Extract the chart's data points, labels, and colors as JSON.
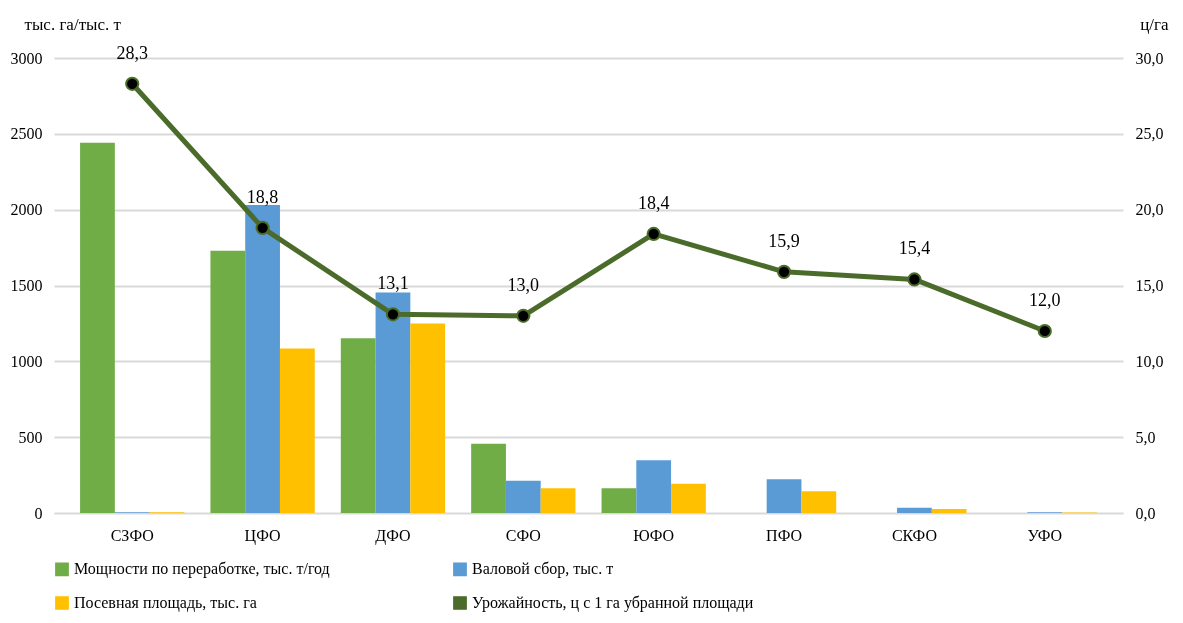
{
  "chart_data": {
    "type": "bar",
    "ylabel": "тыс. га/тыс. т",
    "y2label": "ц/га",
    "categories": [
      "СЗФО",
      "ЦФО",
      "ДФО",
      "СФО",
      "ЮФО",
      "ПФО",
      "СКФО",
      "УФО"
    ],
    "series": [
      {
        "name": "Мощности по переработке, тыс. т/год",
        "color": "#70ad47",
        "values": [
          2442,
          1729,
          1152,
          457,
          163,
          0,
          0,
          0
        ]
      },
      {
        "name": "Валовой сбор, тыс. т",
        "color": "#5b9bd5",
        "values": [
          5,
          2031,
          1454,
          212,
          348,
          223,
          35,
          5
        ]
      },
      {
        "name": "Посевная площадь, тыс. га",
        "color": "#ffc000",
        "values": [
          5,
          1084,
          1250,
          163,
          193,
          144,
          27,
          4
        ]
      },
      {
        "name": "Урожайность, ц с 1 га убранной площади",
        "type": "line",
        "axis": "y2",
        "color": "#4a6b2a",
        "marker": "circle",
        "values": [
          28.3,
          18.8,
          13.1,
          13.0,
          18.4,
          15.9,
          15.4,
          12.0
        ],
        "value_labels": [
          "28,3",
          "18,8",
          "13,1",
          "13,0",
          "18,4",
          "15,9",
          "15,4",
          "12,0"
        ]
      }
    ],
    "ylim": [
      0,
      3000
    ],
    "yticks": [
      0,
      500,
      1000,
      1500,
      2000,
      2500,
      3000
    ],
    "y2lim": [
      0,
      30
    ],
    "y2ticks": [
      {
        "value": 0,
        "label": "0,0"
      },
      {
        "value": 5,
        "label": "5,0"
      },
      {
        "value": 10,
        "label": "10,0"
      },
      {
        "value": 15,
        "label": "15,0"
      },
      {
        "value": 20,
        "label": "20,0"
      },
      {
        "value": 25,
        "label": "25,0"
      },
      {
        "value": 30,
        "label": "30,0"
      }
    ],
    "grid": "y",
    "legend": "bottom"
  }
}
